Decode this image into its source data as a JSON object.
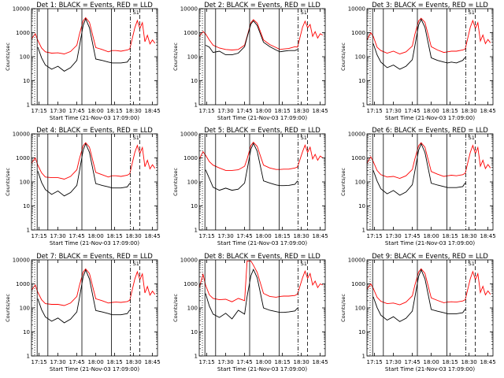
{
  "colors": {
    "events": "#000000",
    "lld": "#ff0000",
    "axis": "#000000",
    "background": "#ffffff"
  },
  "common": {
    "xticks": [
      "17:15",
      "17:30",
      "17:45",
      "18:00",
      "18:15",
      "18:30",
      "18:45"
    ],
    "xlabel": "Start Time (21-Nov-03 17:09:00)",
    "ylabel": "Counts/sec",
    "yticks": [
      "1",
      "10",
      "100",
      "1000",
      "10000"
    ],
    "ylim": [
      1,
      10000
    ],
    "yscale": "log",
    "flag": "S1",
    "x_time_range": [
      "17:09:00",
      "18:49:00"
    ],
    "vertical_markers": [
      {
        "time": "17:11:30",
        "style": "dotted"
      },
      {
        "time": "17:13:30",
        "style": "solid"
      },
      {
        "time": "17:22:00",
        "style": "solid"
      },
      {
        "time": "17:49:00",
        "style": "solid"
      },
      {
        "time": "18:12:30",
        "style": "solid"
      },
      {
        "time": "18:27:30",
        "style": "dash-dot"
      },
      {
        "time": "18:35:00",
        "style": "dashed"
      }
    ]
  },
  "chart_data": [
    {
      "type": "line",
      "title": "Det 1: BLACK = Events, RED = LLD",
      "x": [
        "17:09",
        "17:12",
        "17:14",
        "17:17",
        "17:20",
        "17:25",
        "17:30",
        "17:35",
        "17:40",
        "17:45",
        "17:47",
        "17:50",
        "17:52",
        "17:55",
        "18:00",
        "18:05",
        "18:10",
        "18:13",
        "18:16",
        "18:20",
        "18:25",
        "18:27",
        "18:31",
        "18:33",
        "18:35",
        "18:37",
        "18:39",
        "18:41",
        "18:43",
        "18:45",
        "18:47"
      ],
      "series": [
        {
          "color": "red",
          "values": [
            550,
            900,
            480,
            230,
            160,
            140,
            145,
            130,
            165,
            300,
            850,
            3100,
            4200,
            2700,
            240,
            200,
            160,
            180,
            180,
            170,
            190,
            210,
            1600,
            3200,
            1500,
            2600,
            420,
            780,
            340,
            500,
            360
          ]
        },
        {
          "color": "black",
          "values": [
            null,
            null,
            250,
            90,
            45,
            30,
            40,
            25,
            35,
            70,
            260,
            2000,
            3800,
            1600,
            80,
            70,
            60,
            55,
            55,
            55,
            60,
            85,
            null,
            null,
            null,
            null,
            null,
            null,
            null,
            null,
            null
          ]
        }
      ]
    },
    {
      "type": "line",
      "title": "Det 2: BLACK = Events, RED = LLD",
      "x": [
        "17:09",
        "17:12",
        "17:14",
        "17:17",
        "17:20",
        "17:25",
        "17:30",
        "17:35",
        "17:40",
        "17:45",
        "17:47",
        "17:50",
        "17:52",
        "17:55",
        "18:00",
        "18:05",
        "18:10",
        "18:13",
        "18:16",
        "18:20",
        "18:25",
        "18:27",
        "18:31",
        "18:33",
        "18:35",
        "18:37",
        "18:39",
        "18:41",
        "18:43",
        "18:45",
        "18:47"
      ],
      "series": [
        {
          "color": "red",
          "values": [
            700,
            1100,
            900,
            500,
            300,
            230,
            200,
            190,
            200,
            300,
            700,
            2600,
            3500,
            2500,
            500,
            320,
            240,
            200,
            210,
            220,
            260,
            250,
            1700,
            3000,
            1600,
            2200,
            700,
            1100,
            600,
            900,
            800
          ]
        },
        {
          "color": "black",
          "values": [
            null,
            null,
            300,
            250,
            150,
            170,
            120,
            120,
            140,
            260,
            650,
            2300,
            3100,
            2000,
            400,
            260,
            190,
            160,
            170,
            180,
            180,
            200,
            null,
            null,
            null,
            null,
            null,
            null,
            null,
            null,
            null
          ]
        }
      ]
    },
    {
      "type": "line",
      "title": "Det 3: BLACK = Events, RED = LLD",
      "x": [
        "17:09",
        "17:12",
        "17:14",
        "17:17",
        "17:20",
        "17:25",
        "17:30",
        "17:35",
        "17:40",
        "17:45",
        "17:47",
        "17:50",
        "17:52",
        "17:55",
        "18:00",
        "18:05",
        "18:10",
        "18:13",
        "18:16",
        "18:20",
        "18:25",
        "18:27",
        "18:31",
        "18:33",
        "18:35",
        "18:37",
        "18:39",
        "18:41",
        "18:43",
        "18:45",
        "18:47"
      ],
      "series": [
        {
          "color": "red",
          "values": [
            500,
            1000,
            700,
            250,
            180,
            140,
            170,
            130,
            160,
            280,
            850,
            3100,
            4000,
            2700,
            260,
            190,
            150,
            160,
            170,
            170,
            190,
            210,
            1700,
            3200,
            1500,
            2600,
            450,
            800,
            350,
            520,
            380
          ]
        },
        {
          "color": "black",
          "values": [
            null,
            null,
            350,
            120,
            60,
            35,
            45,
            30,
            40,
            75,
            280,
            2100,
            3600,
            1700,
            90,
            70,
            60,
            55,
            60,
            55,
            70,
            95,
            null,
            null,
            null,
            null,
            null,
            null,
            null,
            null,
            null
          ]
        }
      ]
    },
    {
      "type": "line",
      "title": "Det 4: BLACK = Events, RED = LLD",
      "x": [
        "17:09",
        "17:12",
        "17:14",
        "17:17",
        "17:20",
        "17:25",
        "17:30",
        "17:35",
        "17:40",
        "17:45",
        "17:47",
        "17:50",
        "17:52",
        "17:55",
        "18:00",
        "18:05",
        "18:10",
        "18:13",
        "18:16",
        "18:20",
        "18:25",
        "18:27",
        "18:31",
        "18:33",
        "18:35",
        "18:37",
        "18:39",
        "18:41",
        "18:43",
        "18:45",
        "18:47"
      ],
      "series": [
        {
          "color": "red",
          "values": [
            600,
            1000,
            500,
            240,
            160,
            150,
            150,
            130,
            170,
            320,
            900,
            3200,
            4300,
            2800,
            250,
            200,
            160,
            180,
            180,
            170,
            190,
            220,
            1700,
            3300,
            1500,
            2700,
            430,
            800,
            350,
            520,
            370
          ]
        },
        {
          "color": "black",
          "values": [
            null,
            null,
            280,
            95,
            48,
            30,
            42,
            26,
            36,
            72,
            270,
            2100,
            3900,
            1700,
            85,
            72,
            62,
            56,
            56,
            56,
            62,
            88,
            null,
            null,
            null,
            null,
            null,
            null,
            null,
            null,
            null
          ]
        }
      ]
    },
    {
      "type": "line",
      "title": "Det 5: BLACK = Events, RED = LLD",
      "x": [
        "17:09",
        "17:12",
        "17:14",
        "17:17",
        "17:20",
        "17:25",
        "17:30",
        "17:35",
        "17:40",
        "17:45",
        "17:47",
        "17:50",
        "17:52",
        "17:55",
        "18:00",
        "18:05",
        "18:10",
        "18:13",
        "18:16",
        "18:20",
        "18:25",
        "18:27",
        "18:31",
        "18:33",
        "18:35",
        "18:37",
        "18:39",
        "18:41",
        "18:43",
        "18:45",
        "18:47"
      ],
      "series": [
        {
          "color": "red",
          "values": [
            900,
            1800,
            1300,
            700,
            500,
            380,
            300,
            300,
            320,
            450,
            900,
            3300,
            4500,
            3000,
            500,
            380,
            330,
            330,
            340,
            340,
            380,
            420,
            1800,
            3400,
            1700,
            2800,
            900,
            1400,
            800,
            1200,
            1000
          ]
        },
        {
          "color": "black",
          "values": [
            null,
            null,
            320,
            140,
            60,
            45,
            55,
            45,
            50,
            90,
            320,
            2300,
            4000,
            1900,
            110,
            90,
            75,
            70,
            70,
            72,
            80,
            110,
            null,
            null,
            null,
            null,
            null,
            null,
            null,
            null,
            null
          ]
        }
      ]
    },
    {
      "type": "line",
      "title": "Det 6: BLACK = Events, RED = LLD",
      "x": [
        "17:09",
        "17:12",
        "17:14",
        "17:17",
        "17:20",
        "17:25",
        "17:30",
        "17:35",
        "17:40",
        "17:45",
        "17:47",
        "17:50",
        "17:52",
        "17:55",
        "18:00",
        "18:05",
        "18:10",
        "18:13",
        "18:16",
        "18:20",
        "18:25",
        "18:27",
        "18:31",
        "18:33",
        "18:35",
        "18:37",
        "18:39",
        "18:41",
        "18:43",
        "18:45",
        "18:47"
      ],
      "series": [
        {
          "color": "red",
          "values": [
            600,
            1100,
            700,
            300,
            200,
            160,
            170,
            140,
            180,
            330,
            900,
            3200,
            4300,
            2800,
            270,
            210,
            170,
            180,
            190,
            180,
            200,
            230,
            1700,
            3300,
            1500,
            2700,
            450,
            800,
            360,
            530,
            380
          ]
        },
        {
          "color": "black",
          "values": [
            null,
            null,
            300,
            110,
            52,
            32,
            44,
            28,
            38,
            76,
            280,
            2100,
            3900,
            1700,
            88,
            74,
            64,
            58,
            58,
            58,
            64,
            92,
            null,
            null,
            null,
            null,
            null,
            null,
            null,
            null,
            null
          ]
        }
      ]
    },
    {
      "type": "line",
      "title": "Det 7: BLACK = Events, RED = LLD",
      "x": [
        "17:09",
        "17:12",
        "17:14",
        "17:17",
        "17:20",
        "17:25",
        "17:30",
        "17:35",
        "17:40",
        "17:45",
        "17:47",
        "17:50",
        "17:52",
        "17:55",
        "18:00",
        "18:05",
        "18:10",
        "18:13",
        "18:16",
        "18:20",
        "18:25",
        "18:27",
        "18:31",
        "18:33",
        "18:35",
        "18:37",
        "18:39",
        "18:41",
        "18:43",
        "18:45",
        "18:47"
      ],
      "series": [
        {
          "color": "red",
          "values": [
            550,
            900,
            450,
            220,
            150,
            140,
            140,
            125,
            160,
            300,
            850,
            3100,
            4200,
            2700,
            240,
            200,
            160,
            170,
            175,
            170,
            185,
            210,
            1600,
            3200,
            1500,
            2600,
            420,
            780,
            340,
            500,
            360
          ]
        },
        {
          "color": "black",
          "values": [
            null,
            null,
            240,
            85,
            42,
            28,
            38,
            24,
            34,
            68,
            250,
            2000,
            3800,
            1600,
            78,
            68,
            58,
            52,
            52,
            52,
            58,
            82,
            null,
            null,
            null,
            null,
            null,
            null,
            null,
            null,
            null
          ]
        }
      ]
    },
    {
      "type": "line",
      "title": "Det 8: BLACK = Events, RED = LLD",
      "x": [
        "17:09",
        "17:12",
        "17:14",
        "17:17",
        "17:20",
        "17:25",
        "17:30",
        "17:35",
        "17:40",
        "17:45",
        "17:47",
        "17:50",
        "17:52",
        "17:55",
        "18:00",
        "18:05",
        "18:10",
        "18:13",
        "18:16",
        "18:20",
        "18:25",
        "18:27",
        "18:31",
        "18:33",
        "18:35",
        "18:37",
        "18:39",
        "18:41",
        "18:43",
        "18:45",
        "18:47"
      ],
      "series": [
        {
          "color": "red",
          "values": [
            700,
            2500,
            900,
            350,
            250,
            220,
            230,
            180,
            250,
            200,
            9000,
            9000,
            6000,
            3000,
            400,
            300,
            280,
            300,
            310,
            310,
            330,
            380,
            1800,
            3400,
            1700,
            2700,
            900,
            1300,
            700,
            1000,
            900
          ]
        },
        {
          "color": "black",
          "values": [
            null,
            null,
            400,
            120,
            55,
            40,
            60,
            35,
            80,
            55,
            300,
            2200,
            4000,
            1800,
            100,
            80,
            70,
            65,
            65,
            68,
            75,
            100,
            null,
            null,
            null,
            null,
            null,
            null,
            null,
            null,
            null
          ]
        }
      ]
    },
    {
      "type": "line",
      "title": "Det 9: BLACK = Events, RED = LLD",
      "x": [
        "17:09",
        "17:12",
        "17:14",
        "17:17",
        "17:20",
        "17:25",
        "17:30",
        "17:35",
        "17:40",
        "17:45",
        "17:47",
        "17:50",
        "17:52",
        "17:55",
        "18:00",
        "18:05",
        "18:10",
        "18:13",
        "18:16",
        "18:20",
        "18:25",
        "18:27",
        "18:31",
        "18:33",
        "18:35",
        "18:37",
        "18:39",
        "18:41",
        "18:43",
        "18:45",
        "18:47"
      ],
      "series": [
        {
          "color": "red",
          "values": [
            600,
            1000,
            650,
            280,
            190,
            150,
            160,
            135,
            175,
            320,
            880,
            3150,
            4250,
            2750,
            260,
            205,
            165,
            175,
            180,
            175,
            195,
            220,
            1650,
            3250,
            1500,
            2650,
            440,
            790,
            350,
            510,
            370
          ]
        },
        {
          "color": "black",
          "values": [
            null,
            null,
            290,
            105,
            50,
            31,
            43,
            27,
            37,
            74,
            275,
            2050,
            3850,
            1650,
            86,
            73,
            63,
            57,
            57,
            57,
            63,
            90,
            null,
            null,
            null,
            null,
            null,
            null,
            null,
            null,
            null
          ]
        }
      ]
    }
  ]
}
